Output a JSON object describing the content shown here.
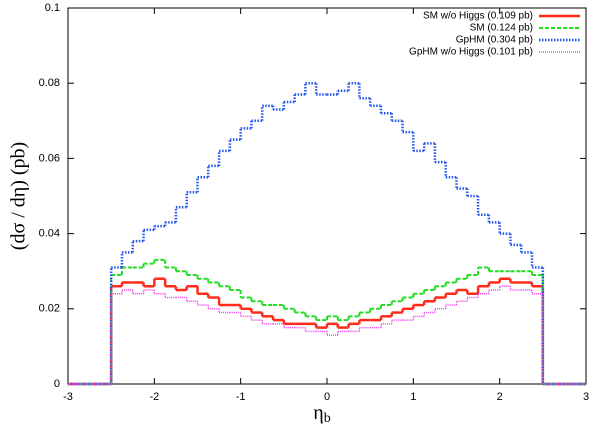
{
  "chart_data": {
    "type": "histogram",
    "ylabel": "(dσ / dη) (pb)",
    "xlabel": "η",
    "xlabel_sub": "b",
    "xlim": [
      -3,
      3
    ],
    "xticks": [
      -3,
      -2,
      -1,
      0,
      1,
      2,
      3
    ],
    "ylim": [
      0,
      0.1
    ],
    "yticks": [
      0,
      0.02,
      0.04,
      0.06,
      0.08,
      0.1
    ],
    "legend": "upper right",
    "bins": [
      -3,
      -2.875,
      -2.75,
      -2.625,
      -2.5,
      -2.375,
      -2.25,
      -2.125,
      -2,
      -1.875,
      -1.75,
      -1.625,
      -1.5,
      -1.375,
      -1.25,
      -1.125,
      -1,
      -0.875,
      -0.75,
      -0.625,
      -0.5,
      -0.375,
      -0.25,
      -0.125,
      0,
      0.125,
      0.25,
      0.375,
      0.5,
      0.625,
      0.75,
      0.875,
      1,
      1.125,
      1.25,
      1.375,
      1.5,
      1.625,
      1.75,
      1.875,
      2,
      2.125,
      2.25,
      2.375,
      2.5,
      2.625,
      2.75,
      2.875,
      3
    ],
    "series": [
      {
        "name": "SM w/o Higgs (0.109 pb)",
        "color": "#ff2a1a",
        "line_style": "solid",
        "values": [
          0,
          0,
          0,
          0,
          0.026,
          0.027,
          0.027,
          0.026,
          0.028,
          0.026,
          0.025,
          0.026,
          0.024,
          0.023,
          0.021,
          0.021,
          0.02,
          0.019,
          0.018,
          0.017,
          0.016,
          0.016,
          0.016,
          0.015,
          0.016,
          0.015,
          0.016,
          0.017,
          0.017,
          0.018,
          0.019,
          0.02,
          0.021,
          0.022,
          0.023,
          0.024,
          0.025,
          0.024,
          0.026,
          0.027,
          0.028,
          0.027,
          0.027,
          0.026,
          0,
          0,
          0,
          0
        ]
      },
      {
        "name": "SM (0.124 pb)",
        "color": "#22dd22",
        "line_style": "dashed",
        "values": [
          0,
          0,
          0,
          0,
          0.029,
          0.031,
          0.031,
          0.032,
          0.033,
          0.031,
          0.03,
          0.029,
          0.028,
          0.027,
          0.026,
          0.025,
          0.023,
          0.022,
          0.021,
          0.021,
          0.02,
          0.019,
          0.018,
          0.017,
          0.018,
          0.017,
          0.018,
          0.019,
          0.02,
          0.021,
          0.022,
          0.023,
          0.024,
          0.025,
          0.026,
          0.027,
          0.028,
          0.029,
          0.031,
          0.03,
          0.03,
          0.03,
          0.03,
          0.029,
          0,
          0,
          0,
          0
        ]
      },
      {
        "name": "GpHM (0.304 pb)",
        "color": "#2255ee",
        "line_style": "dotted",
        "values": [
          0,
          0,
          0,
          0,
          0.031,
          0.035,
          0.038,
          0.041,
          0.042,
          0.043,
          0.047,
          0.051,
          0.055,
          0.058,
          0.062,
          0.065,
          0.068,
          0.07,
          0.074,
          0.073,
          0.075,
          0.077,
          0.08,
          0.077,
          0.077,
          0.078,
          0.08,
          0.076,
          0.074,
          0.072,
          0.07,
          0.067,
          0.062,
          0.064,
          0.059,
          0.055,
          0.052,
          0.05,
          0.045,
          0.043,
          0.04,
          0.037,
          0.035,
          0.031,
          0,
          0,
          0,
          0
        ]
      },
      {
        "name": "GpHM w/o Higgs (0.101 pb)",
        "color": "#ee44ee",
        "line_style": "fine-dotted",
        "values": [
          0,
          0,
          0,
          0,
          0.024,
          0.025,
          0.024,
          0.025,
          0.024,
          0.023,
          0.023,
          0.022,
          0.021,
          0.02,
          0.019,
          0.019,
          0.018,
          0.017,
          0.016,
          0.016,
          0.015,
          0.015,
          0.014,
          0.014,
          0.013,
          0.014,
          0.014,
          0.015,
          0.015,
          0.016,
          0.017,
          0.017,
          0.018,
          0.019,
          0.02,
          0.021,
          0.022,
          0.023,
          0.024,
          0.025,
          0.026,
          0.025,
          0.025,
          0.024,
          0,
          0,
          0,
          0
        ]
      }
    ]
  }
}
